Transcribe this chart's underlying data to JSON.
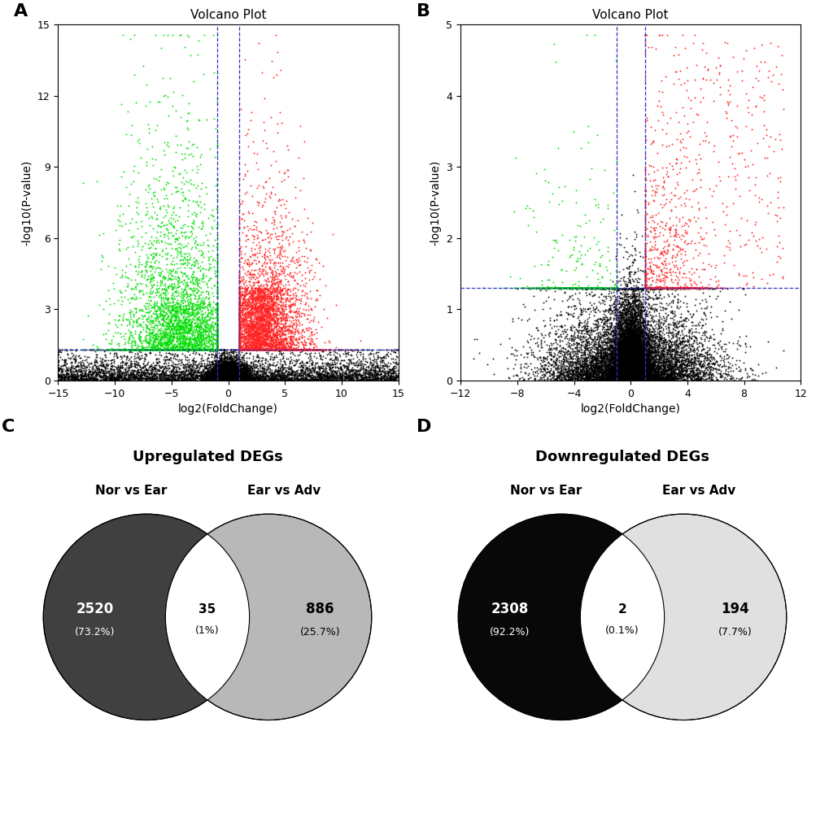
{
  "panel_A": {
    "title": "Volcano Plot",
    "xlabel": "log2(FoldChange)",
    "ylabel": "-log10(P-value)",
    "xlim": [
      -15,
      15
    ],
    "ylim": [
      0,
      15
    ],
    "xticks": [
      -15,
      -10,
      -5,
      0,
      5,
      10,
      15
    ],
    "yticks": [
      0,
      3,
      6,
      9,
      12,
      15
    ],
    "fc_cutoff": 1.0,
    "pval_cutoff": 1.3
  },
  "panel_B": {
    "title": "Volcano Plot",
    "xlabel": "log2(FoldChange)",
    "ylabel": "-log10(P-value)",
    "xlim": [
      -12,
      12
    ],
    "ylim": [
      0,
      5
    ],
    "xticks": [
      -12,
      -8,
      -4,
      0,
      4,
      8,
      12
    ],
    "yticks": [
      0,
      1,
      2,
      3,
      4,
      5
    ],
    "fc_cutoff": 1.0,
    "pval_cutoff": 1.3
  },
  "panel_C": {
    "title": "Upregulated DEGs",
    "label_left": "Nor vs Ear",
    "label_right": "Ear vs Adv",
    "val_left": "2520",
    "pct_left": "(73.2%)",
    "val_center": "35",
    "pct_center": "(1%)",
    "val_right": "886",
    "pct_right": "(25.7%)",
    "color_left": "#404040",
    "color_right": "#b8b8b8"
  },
  "panel_D": {
    "title": "Downregulated DEGs",
    "label_left": "Nor vs Ear",
    "label_right": "Ear vs Adv",
    "val_left": "2308",
    "pct_left": "(92.2%)",
    "val_center": "2",
    "pct_center": "(0.1%)",
    "val_right": "194",
    "pct_right": "(7.7%)",
    "color_left": "#080808",
    "color_right": "#e0e0e0"
  },
  "panel_label_fontsize": 16,
  "dot_size": 2.0,
  "dashed_color": "#3333cc",
  "green_color": "#00dd00",
  "red_color": "#ff2222",
  "black_color": "#000000"
}
